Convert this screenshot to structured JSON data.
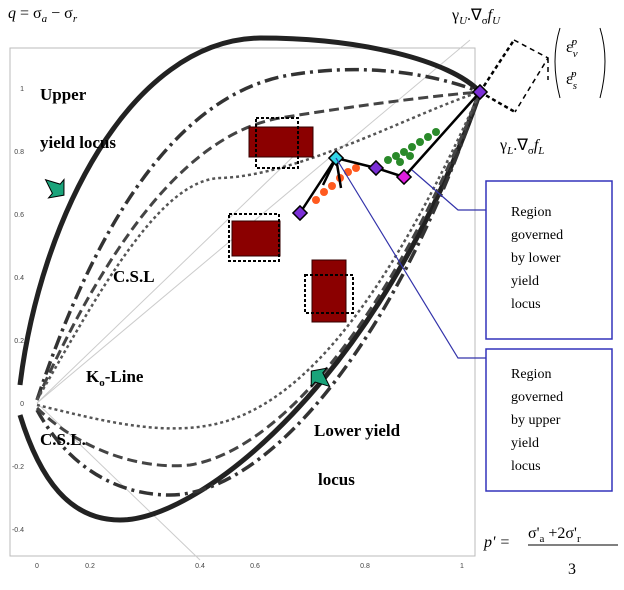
{
  "equations": {
    "q": [
      "q",
      " = σ",
      "a",
      " − σ",
      "r"
    ],
    "p": [
      "p' = ",
      "σ'",
      "a",
      " +2σ'",
      "r",
      "3"
    ],
    "gamma_u": [
      "γ",
      "U",
      ".∇",
      "σ",
      "f",
      "U"
    ],
    "gamma_l": [
      "γ",
      "L",
      ".∇",
      "σ",
      "f",
      "L"
    ],
    "strain": [
      "ε̇",
      "v",
      "p",
      "ε̇",
      "s",
      "p"
    ]
  },
  "labels": {
    "upper_1": "Upper",
    "upper_2": "yield locus",
    "csl_upper": "C.S.L",
    "k0": [
      "K",
      "o",
      "-Line"
    ],
    "csl_lower": "C.S.L.",
    "lower_1": "Lower yield",
    "lower_2": "locus"
  },
  "regions": [
    [
      "Region",
      "governed",
      "by  lower",
      "yield",
      "locus"
    ],
    [
      "Region",
      "governed",
      "by  upper",
      "yield",
      "locus"
    ]
  ],
  "x_ticks": [
    "0",
    "0.2",
    "0.4",
    "0.6",
    "0.8",
    "1"
  ],
  "y_ticks": [
    "1",
    "0.8",
    "0.6",
    "0.4",
    "0.2",
    "0",
    "-0.2",
    "-0.4"
  ]
}
